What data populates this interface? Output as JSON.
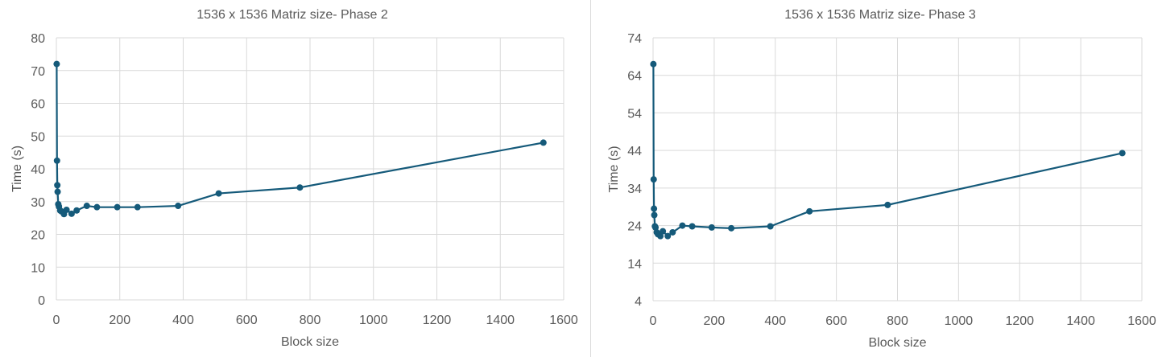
{
  "colors": {
    "series": "#155a7a",
    "grid": "#d9d9d9",
    "text": "#595959"
  },
  "chart_data": [
    {
      "type": "scatter",
      "title": "1536 x 1536 Matriz size- Phase 2",
      "xlabel": "Block size",
      "ylabel": "Time (s)",
      "xlim": [
        0,
        1600
      ],
      "ylim": [
        0,
        80
      ],
      "xticks": [
        0,
        200,
        400,
        600,
        800,
        1000,
        1200,
        1400,
        1600
      ],
      "yticks": [
        0,
        10,
        20,
        30,
        40,
        50,
        60,
        70,
        80
      ],
      "grid": true,
      "legend": "none",
      "series": [
        {
          "x": [
            1,
            2,
            3,
            4,
            6,
            8,
            12,
            16,
            24,
            32,
            48,
            64,
            96,
            128,
            192,
            256,
            384,
            512,
            768,
            1536
          ],
          "y": [
            72,
            42.5,
            35,
            33,
            29.2,
            28.5,
            27.3,
            27,
            26.2,
            27.5,
            26.3,
            27.3,
            28.7,
            28.3,
            28.3,
            28.3,
            28.7,
            32.5,
            34.3,
            48
          ]
        }
      ]
    },
    {
      "type": "scatter",
      "title": "1536 x 1536 Matriz size- Phase 3",
      "xlabel": "Block size",
      "ylabel": "Time (s)",
      "xlim": [
        0,
        1600
      ],
      "ylim": [
        4,
        74
      ],
      "xticks": [
        0,
        200,
        400,
        600,
        800,
        1000,
        1200,
        1400,
        1600
      ],
      "yticks": [
        4,
        14,
        24,
        34,
        44,
        54,
        64,
        74
      ],
      "grid": true,
      "legend": "none",
      "series": [
        {
          "x": [
            1,
            2,
            3,
            4,
            6,
            8,
            12,
            16,
            24,
            32,
            48,
            64,
            96,
            128,
            192,
            256,
            384,
            512,
            768,
            1536
          ],
          "y": [
            67,
            36.3,
            28.5,
            26.8,
            23.8,
            23.5,
            22.2,
            21.7,
            21.2,
            22.5,
            21.2,
            22.2,
            24,
            23.8,
            23.5,
            23.3,
            23.8,
            27.8,
            29.5,
            43.3
          ]
        }
      ]
    }
  ]
}
